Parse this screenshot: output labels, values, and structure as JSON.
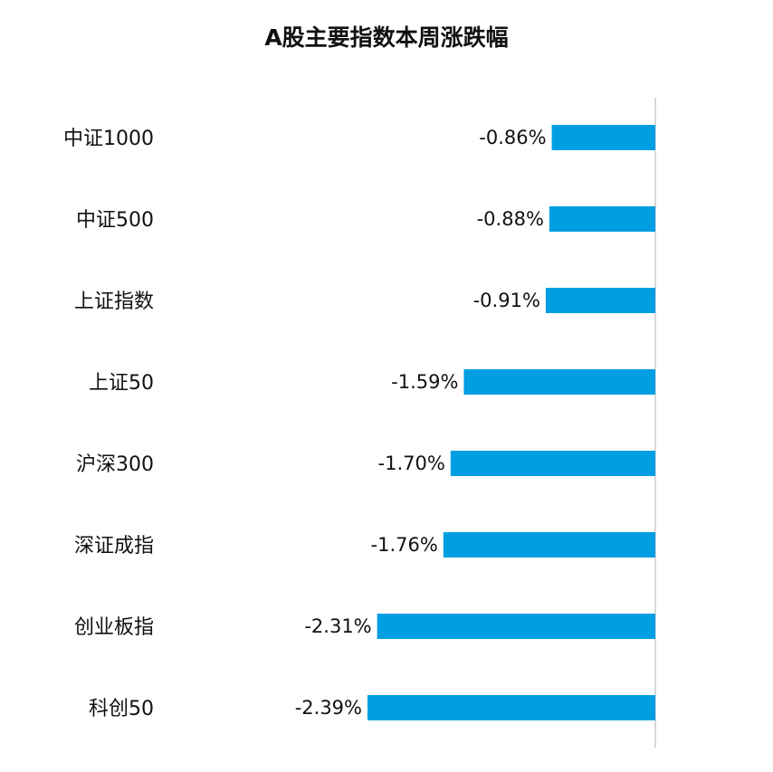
{
  "chart_data": {
    "type": "bar",
    "orientation": "horizontal",
    "title": "A股主要指数本周涨跌幅",
    "xlabel": "",
    "ylabel": "",
    "categories": [
      "中证1000",
      "中证500",
      "上证指数",
      "上证50",
      "沪深300",
      "深证成指",
      "创业板指",
      "科创50"
    ],
    "values": [
      -0.86,
      -0.88,
      -0.91,
      -1.59,
      -1.7,
      -1.76,
      -2.31,
      -2.39
    ],
    "value_labels": [
      "-0.86%",
      "-0.88%",
      "-0.91%",
      "-1.59%",
      "-1.70%",
      "-1.76%",
      "-2.31%",
      "-2.39%"
    ],
    "xlim": [
      -2.39,
      0
    ],
    "grid": false,
    "legend": "none",
    "bar_color": "#009fe3",
    "axis_color": "#cccccc"
  }
}
